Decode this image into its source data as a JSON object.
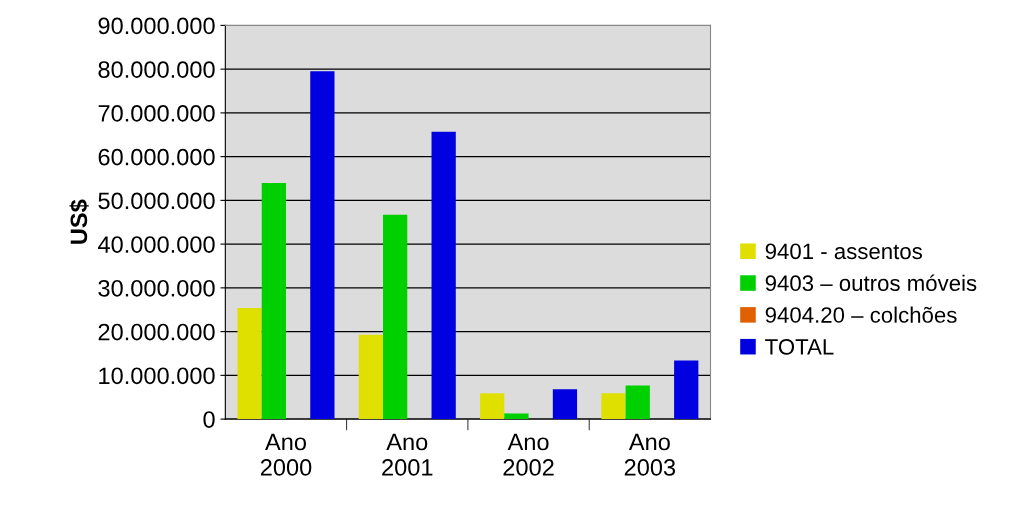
{
  "chart_data": {
    "type": "bar",
    "ylabel": "US$",
    "categories": [
      "Ano\n2000",
      "Ano\n2001",
      "Ano\n2002",
      "Ano\n2003"
    ],
    "series": [
      {
        "name": "9401 - assentos",
        "color": "#e0e000",
        "values": [
          25400000,
          19300000,
          5900000,
          5900000
        ]
      },
      {
        "name": "9403 – outros móveis",
        "color": "#00d000",
        "values": [
          54000000,
          46700000,
          1300000,
          7700000
        ]
      },
      {
        "name": "9404.20 – colchões",
        "color": "#e06000",
        "values": [
          0,
          0,
          0,
          0
        ]
      },
      {
        "name": "TOTAL",
        "color": "#0000e0",
        "values": [
          79500000,
          65700000,
          6800000,
          13400000
        ]
      }
    ],
    "ylim": [
      0,
      90000000
    ],
    "yticks": [
      {
        "value": 0,
        "label": "0"
      },
      {
        "value": 10000000,
        "label": "10.000.000"
      },
      {
        "value": 20000000,
        "label": "20.000.000"
      },
      {
        "value": 30000000,
        "label": "30.000.000"
      },
      {
        "value": 40000000,
        "label": "40.000.000"
      },
      {
        "value": 50000000,
        "label": "50.000.000"
      },
      {
        "value": 60000000,
        "label": "60.000.000"
      },
      {
        "value": 70000000,
        "label": "70.000.000"
      },
      {
        "value": 80000000,
        "label": "80.000.000"
      },
      {
        "value": 90000000,
        "label": "90.000.000"
      }
    ],
    "grid": "y",
    "legend": "right"
  }
}
